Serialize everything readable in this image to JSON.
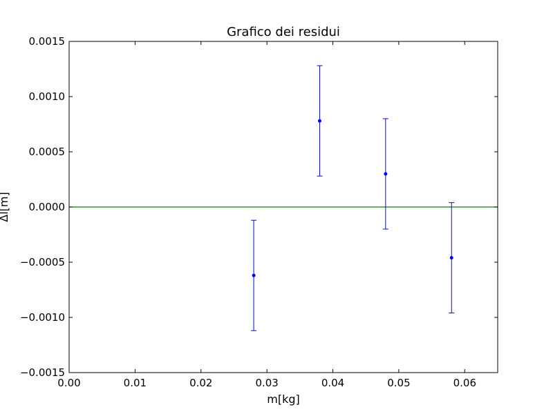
{
  "chart_data": {
    "type": "scatter",
    "title": "Grafico dei residui",
    "xlabel": "m[kg]",
    "ylabel": "Δl[m]",
    "xlim": [
      0.0,
      0.065
    ],
    "ylim": [
      -0.0015,
      0.0015
    ],
    "xticks": [
      0.0,
      0.01,
      0.02,
      0.03,
      0.04,
      0.05,
      0.06
    ],
    "xtick_labels": [
      "0.00",
      "0.01",
      "0.02",
      "0.03",
      "0.04",
      "0.05",
      "0.06"
    ],
    "yticks": [
      0.0015,
      0.001,
      0.0005,
      0.0,
      -0.0005,
      -0.001,
      -0.0015
    ],
    "ytick_labels": [
      "0.0015",
      "0.0010",
      "0.0005",
      "0.0000",
      "−0.0005",
      "−0.0010",
      "−0.0015"
    ],
    "grid": false,
    "colors": {
      "points": "#0000ff",
      "errorbars": "#0000ff",
      "reference_line": "#008000",
      "axes": "#000000"
    },
    "reference_line": {
      "y": 0.0
    },
    "series": [
      {
        "points": [
          {
            "x": 0.028,
            "y": -0.00062,
            "yerr": 0.0005
          },
          {
            "x": 0.038,
            "y": 0.00078,
            "yerr": 0.0005
          },
          {
            "x": 0.048,
            "y": 0.0003,
            "yerr": 0.0005
          },
          {
            "x": 0.058,
            "y": -0.00046,
            "yerr": 0.0005
          }
        ]
      }
    ]
  }
}
